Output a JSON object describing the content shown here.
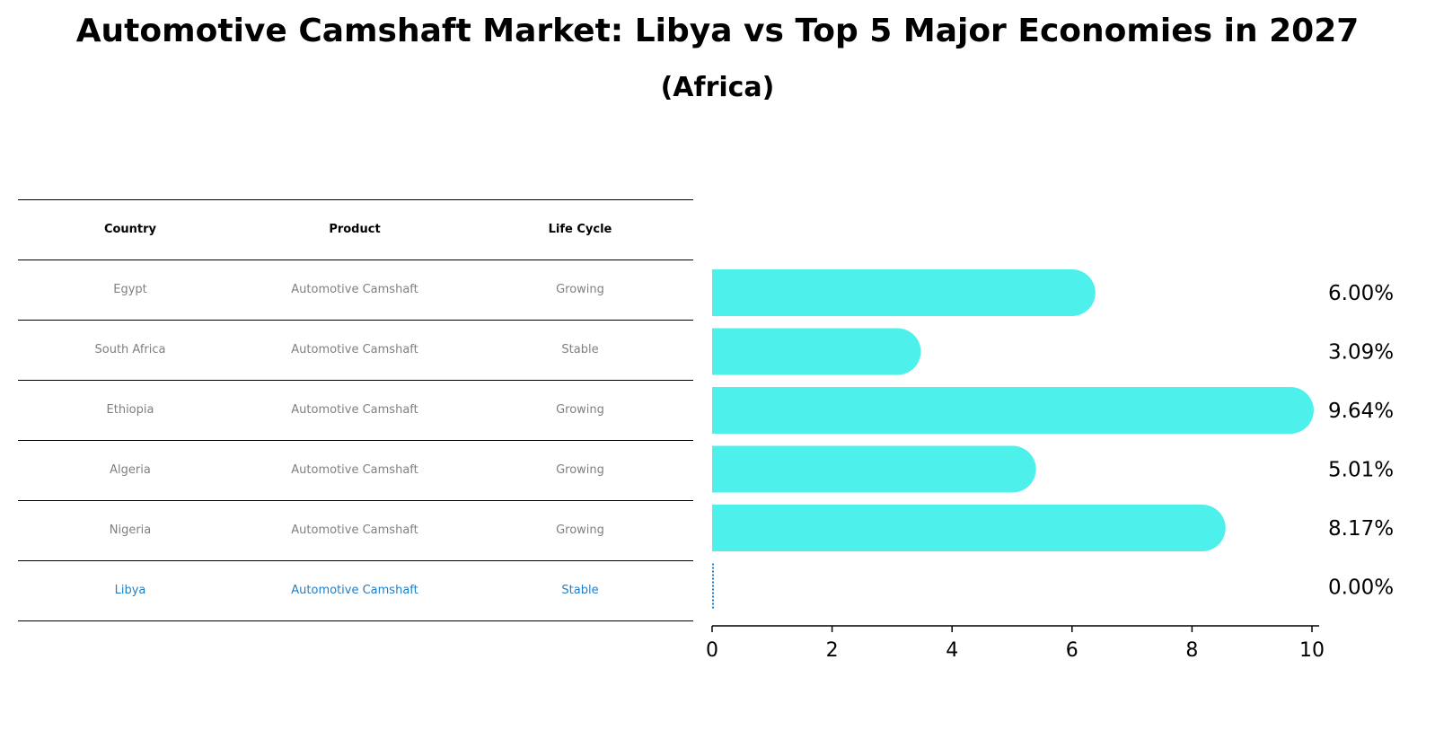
{
  "title": "Automotive Camshaft Market: Libya vs Top 5 Major Economies in 2027",
  "subtitle": "(Africa)",
  "table": {
    "headers": [
      "Country",
      "Product",
      "Life Cycle"
    ],
    "rows": [
      [
        "Egypt",
        "Automotive Camshaft",
        "Growing"
      ],
      [
        "South Africa",
        "Automotive Camshaft",
        "Stable"
      ],
      [
        "Ethiopia",
        "Automotive Camshaft",
        "Growing"
      ],
      [
        "Algeria",
        "Automotive Camshaft",
        "Growing"
      ],
      [
        "Nigeria",
        "Automotive Camshaft",
        "Growing"
      ],
      [
        "Libya",
        "Automotive Camshaft",
        "Stable"
      ]
    ],
    "highlight_color": "#1f7fc4",
    "text_color": "#808080"
  },
  "chart_data": {
    "type": "bar",
    "orientation": "horizontal",
    "categories": [
      "Egypt",
      "South Africa",
      "Ethiopia",
      "Algeria",
      "Nigeria",
      "Libya"
    ],
    "values": [
      6.0,
      3.09,
      9.64,
      5.01,
      8.17,
      0.0
    ],
    "value_labels": [
      "6.00%",
      "3.09%",
      "9.64%",
      "5.01%",
      "8.17%",
      "0.00%"
    ],
    "xlim": [
      0,
      10
    ],
    "xticks": [
      "0",
      "2",
      "4",
      "6",
      "8",
      "10"
    ],
    "bar_color": "#4ef0ec",
    "highlight_color": "#1f7fc4",
    "grid": false
  }
}
